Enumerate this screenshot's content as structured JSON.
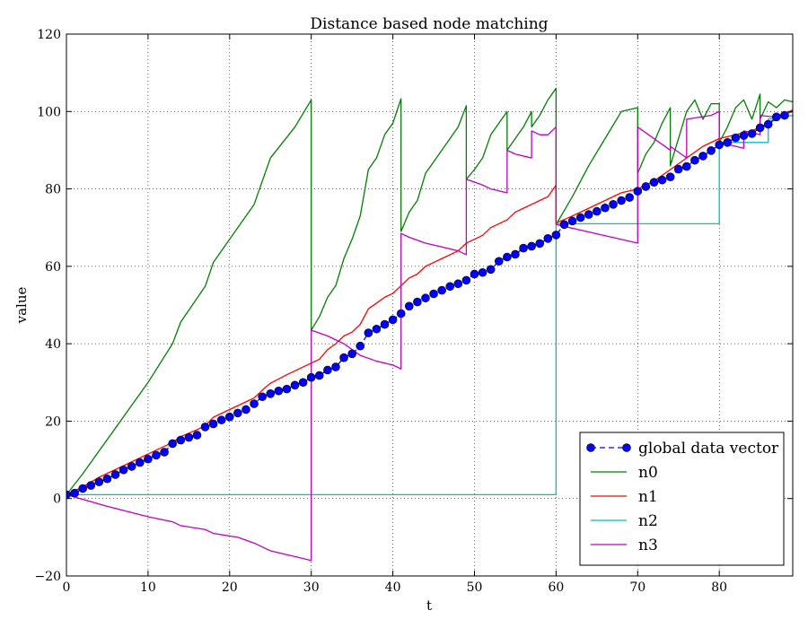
{
  "chart_data": {
    "type": "line",
    "title": "Distance based node matching",
    "xlabel": "t",
    "ylabel": "value",
    "xlim": [
      0,
      89
    ],
    "ylim": [
      -20,
      120
    ],
    "xticks": [
      0,
      10,
      20,
      30,
      40,
      50,
      60,
      70,
      80
    ],
    "yticks": [
      -20,
      0,
      20,
      40,
      60,
      80,
      100,
      120
    ],
    "xtick_labels": [
      "0",
      "10",
      "20",
      "30",
      "40",
      "50",
      "60",
      "70",
      "80"
    ],
    "ytick_labels": [
      "−20",
      "0",
      "20",
      "40",
      "60",
      "80",
      "100",
      "120"
    ],
    "grid": true,
    "legend_position": "lower-right",
    "series": [
      {
        "name": "global data vector",
        "color": "#0000ff",
        "style": "dashed-with-circle-markers",
        "x": [
          0,
          1,
          2,
          3,
          4,
          5,
          6,
          7,
          8,
          9,
          10,
          11,
          12,
          13,
          14,
          15,
          16,
          17,
          18,
          19,
          20,
          21,
          22,
          23,
          24,
          25,
          26,
          27,
          28,
          29,
          30,
          31,
          32,
          33,
          34,
          35,
          36,
          37,
          38,
          39,
          40,
          41,
          42,
          43,
          44,
          45,
          46,
          47,
          48,
          49,
          50,
          51,
          52,
          53,
          54,
          55,
          56,
          57,
          58,
          59,
          60,
          61,
          62,
          63,
          64,
          65,
          66,
          67,
          68,
          69,
          70,
          71,
          72,
          73,
          74,
          75,
          76,
          77,
          78,
          79,
          80,
          81,
          82,
          83,
          84,
          85,
          86,
          87,
          88
        ],
        "y": [
          1.0,
          1.4,
          2.6,
          3.4,
          4.3,
          5.1,
          6.2,
          7.4,
          8.3,
          9.3,
          10.2,
          11.2,
          12.0,
          14.2,
          15.1,
          15.8,
          16.4,
          18.5,
          19.3,
          20.3,
          21.1,
          22.1,
          23.0,
          24.5,
          26.3,
          27.1,
          27.8,
          28.3,
          29.3,
          30.0,
          31.3,
          31.8,
          33.2,
          34.0,
          36.4,
          37.4,
          39.4,
          42.8,
          43.8,
          45.0,
          46.2,
          47.8,
          49.7,
          50.8,
          51.8,
          52.9,
          53.8,
          54.8,
          55.5,
          56.4,
          58.0,
          58.4,
          59.2,
          61.3,
          62.4,
          63.1,
          64.7,
          65.2,
          65.9,
          67.2,
          68.1,
          70.8,
          71.7,
          72.6,
          73.4,
          74.2,
          75.1,
          76.0,
          77.0,
          77.8,
          79.4,
          80.6,
          81.7,
          82.3,
          83.1,
          85.1,
          85.8,
          87.4,
          88.5,
          89.9,
          91.4,
          92.0,
          93.2,
          93.8,
          94.3,
          95.8,
          96.7,
          98.6,
          99.0
        ]
      },
      {
        "name": "n0",
        "color": "#007f00",
        "style": "solid",
        "x": [
          0,
          2,
          4,
          6,
          8,
          10,
          13,
          14,
          17,
          18,
          20,
          23,
          25,
          28,
          30,
          30,
          31,
          32,
          33,
          34,
          35,
          36,
          37,
          38,
          39,
          40,
          41,
          41,
          42,
          43,
          44,
          45,
          46,
          47,
          48,
          49,
          49,
          50,
          51,
          52,
          53,
          54,
          54,
          55,
          56,
          57,
          57,
          58,
          59,
          60,
          60,
          62,
          64,
          66,
          68,
          70,
          70,
          71,
          72,
          73,
          74,
          74,
          75,
          76,
          77,
          78,
          79,
          80,
          80,
          81,
          82,
          83,
          84,
          85,
          85,
          86,
          87,
          88,
          89
        ],
        "y": [
          1.0,
          6.4,
          12.3,
          18.2,
          24.1,
          30.0,
          40.0,
          45.6,
          54.8,
          61.0,
          67.0,
          76.0,
          88.0,
          96.0,
          103.0,
          43.5,
          47.0,
          52.0,
          55.0,
          62.0,
          67.0,
          73.0,
          85.0,
          88.0,
          94.0,
          97.0,
          103.3,
          69.0,
          74.0,
          77.0,
          84.0,
          87.0,
          90.0,
          93.0,
          96.0,
          101.5,
          82.5,
          85.0,
          88.0,
          94.0,
          97.0,
          100.0,
          90.0,
          93.0,
          96.0,
          100.0,
          96.0,
          99.0,
          103.0,
          106.0,
          70.8,
          78.0,
          86.0,
          93.0,
          100.0,
          101.0,
          84.0,
          89.0,
          92.0,
          97.0,
          101.0,
          86.0,
          93.0,
          100.0,
          103.0,
          98.0,
          102.0,
          102.0,
          92.0,
          96.0,
          101.0,
          103.0,
          98.0,
          104.5,
          98.0,
          102.5,
          101.0,
          103.0,
          102.5
        ]
      },
      {
        "name": "n1",
        "color": "#ff0000",
        "style": "solid",
        "x": [
          0,
          2,
          4,
          6,
          8,
          10,
          12,
          13,
          14,
          16,
          17,
          18,
          20,
          22,
          23,
          24,
          25,
          27,
          29,
          30,
          31,
          32,
          33,
          34,
          35,
          36,
          37,
          38,
          39,
          40,
          41,
          42,
          43,
          44,
          45,
          46,
          47,
          48,
          49,
          50,
          51,
          52,
          53,
          54,
          55,
          56,
          57,
          58,
          59,
          60,
          60,
          62,
          64,
          66,
          68,
          70,
          72,
          74,
          76,
          78,
          80,
          82,
          84,
          86,
          88,
          89
        ],
        "y": [
          1.0,
          3.0,
          5.5,
          7.5,
          9.5,
          11.5,
          13.5,
          14.5,
          16.0,
          17.8,
          18.8,
          21.0,
          23.0,
          25.0,
          26.0,
          28.0,
          29.8,
          32.0,
          34.0,
          35.0,
          36.0,
          38.5,
          40.0,
          42.0,
          43.0,
          45.0,
          49.0,
          50.5,
          52.0,
          53.0,
          55.0,
          57.0,
          58.0,
          60.0,
          61.0,
          62.0,
          63.0,
          64.0,
          66.0,
          67.0,
          68.0,
          70.0,
          71.0,
          72.0,
          74.0,
          75.0,
          76.0,
          77.0,
          78.0,
          81.0,
          71.2,
          73.0,
          75.0,
          77.0,
          79.0,
          80.0,
          82.0,
          85.0,
          88.0,
          91.0,
          93.0,
          94.0,
          95.0,
          97.0,
          99.0,
          100.5
        ]
      },
      {
        "name": "n2",
        "color": "#00bfbf",
        "style": "solid",
        "x": [
          0,
          1,
          60,
          60,
          80,
          80,
          86,
          86,
          89
        ],
        "y": [
          1.0,
          1.0,
          1.0,
          71.0,
          71.0,
          92.0,
          92.0,
          98.0,
          99.0
        ]
      },
      {
        "name": "n3",
        "color": "#bf00bf",
        "style": "solid",
        "x": [
          0,
          5,
          10,
          13,
          14,
          17,
          18,
          21,
          23,
          25,
          28,
          30,
          30,
          32,
          34,
          36,
          38,
          40,
          41,
          41,
          42,
          44,
          46,
          48,
          49,
          49,
          51,
          52,
          54,
          54,
          55,
          57,
          57,
          58,
          59,
          60,
          60,
          70,
          70,
          74,
          74,
          76,
          76,
          79,
          80,
          80,
          83,
          83,
          85,
          85,
          87,
          89
        ],
        "y": [
          1.0,
          -2.0,
          -4.7,
          -6.0,
          -7.0,
          -8.0,
          -9.0,
          -10.0,
          -11.5,
          -13.5,
          -15.0,
          -16.0,
          43.5,
          42.0,
          40.0,
          37.0,
          35.5,
          34.5,
          33.5,
          68.5,
          67.5,
          66.0,
          65.0,
          64.0,
          63.0,
          82.5,
          81.0,
          80.0,
          79.0,
          90.0,
          89.0,
          88.0,
          95.0,
          94.0,
          94.0,
          96.0,
          70.8,
          66.0,
          96.0,
          90.0,
          91.0,
          88.0,
          98.0,
          99.0,
          100.0,
          92.0,
          90.5,
          95.0,
          94.0,
          99.0,
          98.5,
          100.0
        ]
      }
    ]
  }
}
